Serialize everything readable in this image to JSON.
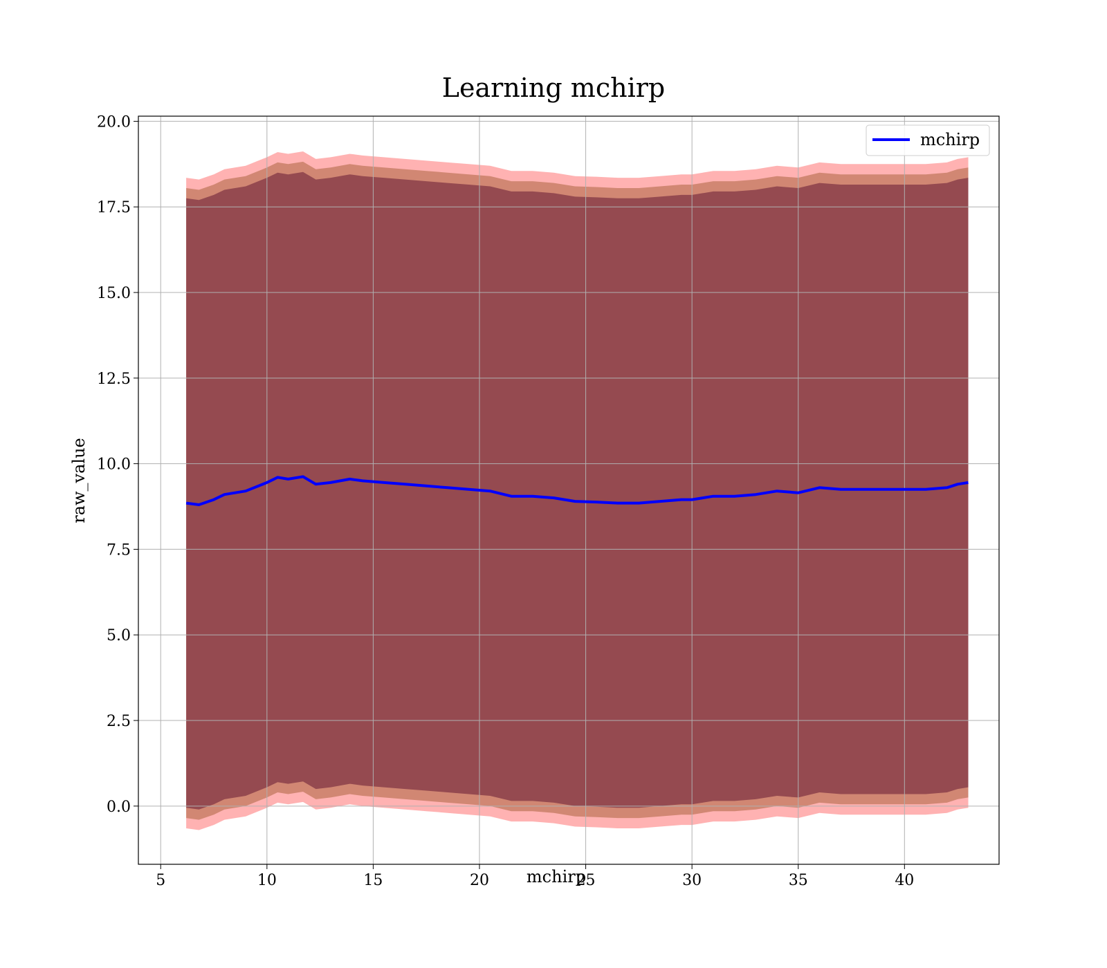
{
  "chart_data": {
    "type": "line",
    "title": "Learning mchirp",
    "xlabel": "mchirp",
    "ylabel": "raw_value",
    "xlim": [
      3.95,
      44.45
    ],
    "ylim": [
      -1.7,
      20.15
    ],
    "xticks": [
      5,
      10,
      15,
      20,
      25,
      30,
      35,
      40
    ],
    "yticks": [
      0.0,
      2.5,
      5.0,
      7.5,
      10.0,
      12.5,
      15.0,
      17.5,
      20.0
    ],
    "grid": true,
    "legend_position": "top-right",
    "x": [
      6.2,
      6.8,
      7.5,
      8.0,
      9.0,
      10.0,
      10.5,
      11.0,
      11.7,
      12.3,
      13.0,
      13.9,
      14.5,
      15.5,
      16.5,
      17.5,
      18.5,
      19.5,
      20.5,
      21.5,
      22.5,
      23.5,
      24.5,
      25.5,
      26.5,
      27.5,
      28.5,
      29.5,
      30.0,
      31.0,
      32.0,
      33.0,
      34.0,
      35.0,
      36.0,
      37.0,
      38.0,
      39.0,
      40.0,
      41.0,
      42.0,
      42.5,
      43.0
    ],
    "series": [
      {
        "name": "mchirp",
        "color": "#0000ff",
        "values": [
          8.85,
          8.8,
          8.95,
          9.1,
          9.2,
          9.45,
          9.6,
          9.55,
          9.62,
          9.4,
          9.45,
          9.55,
          9.5,
          9.45,
          9.4,
          9.35,
          9.3,
          9.25,
          9.2,
          9.05,
          9.05,
          9.0,
          8.9,
          8.88,
          8.85,
          8.85,
          8.9,
          8.95,
          8.95,
          9.05,
          9.05,
          9.1,
          9.2,
          9.15,
          9.3,
          9.25,
          9.25,
          9.25,
          9.25,
          9.25,
          9.3,
          9.4,
          9.45
        ]
      }
    ],
    "bands": [
      {
        "color": "#ff0000",
        "opacity": 0.3,
        "half_width": 9.5
      },
      {
        "color": "#8b4513",
        "opacity": 0.4,
        "half_width": 9.2
      },
      {
        "color": "#4b0026",
        "opacity": 0.45,
        "half_width": 8.9
      }
    ]
  }
}
